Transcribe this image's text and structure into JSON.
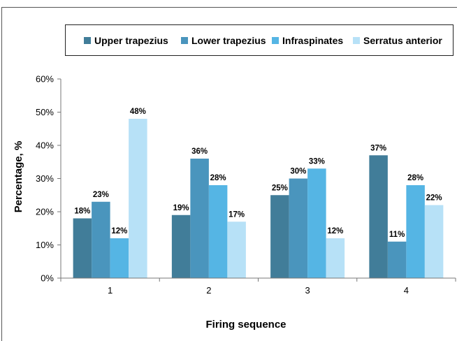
{
  "chart_data": {
    "type": "bar",
    "categories": [
      "1",
      "2",
      "3",
      "4"
    ],
    "series": [
      {
        "name": "Upper trapezius",
        "values": [
          18,
          19,
          25,
          37
        ],
        "color": "#417D99"
      },
      {
        "name": "Lower trapezius",
        "values": [
          23,
          36,
          30,
          11
        ],
        "color": "#4A95BD"
      },
      {
        "name": "Infraspinates",
        "values": [
          12,
          28,
          33,
          28
        ],
        "color": "#55B5E4"
      },
      {
        "name": "Serratus anterior",
        "values": [
          48,
          17,
          12,
          22
        ],
        "color": "#B7E1F7"
      }
    ],
    "data_labels": [
      [
        "18%",
        "19%",
        "25%",
        "37%"
      ],
      [
        "23%",
        "36%",
        "30%",
        "11%"
      ],
      [
        "12%",
        "28%",
        "33%",
        "28%"
      ],
      [
        "48%",
        "17%",
        "12%",
        "22%"
      ]
    ],
    "xlabel": "Firing sequence",
    "ylabel": "Percentage, %",
    "ylim": [
      0,
      60
    ],
    "yticks": [
      0,
      10,
      20,
      30,
      40,
      50,
      60
    ],
    "ytick_labels": [
      "0%",
      "10%",
      "20%",
      "30%",
      "40%",
      "50%",
      "60%"
    ],
    "grid": false,
    "legend_position": "top"
  }
}
